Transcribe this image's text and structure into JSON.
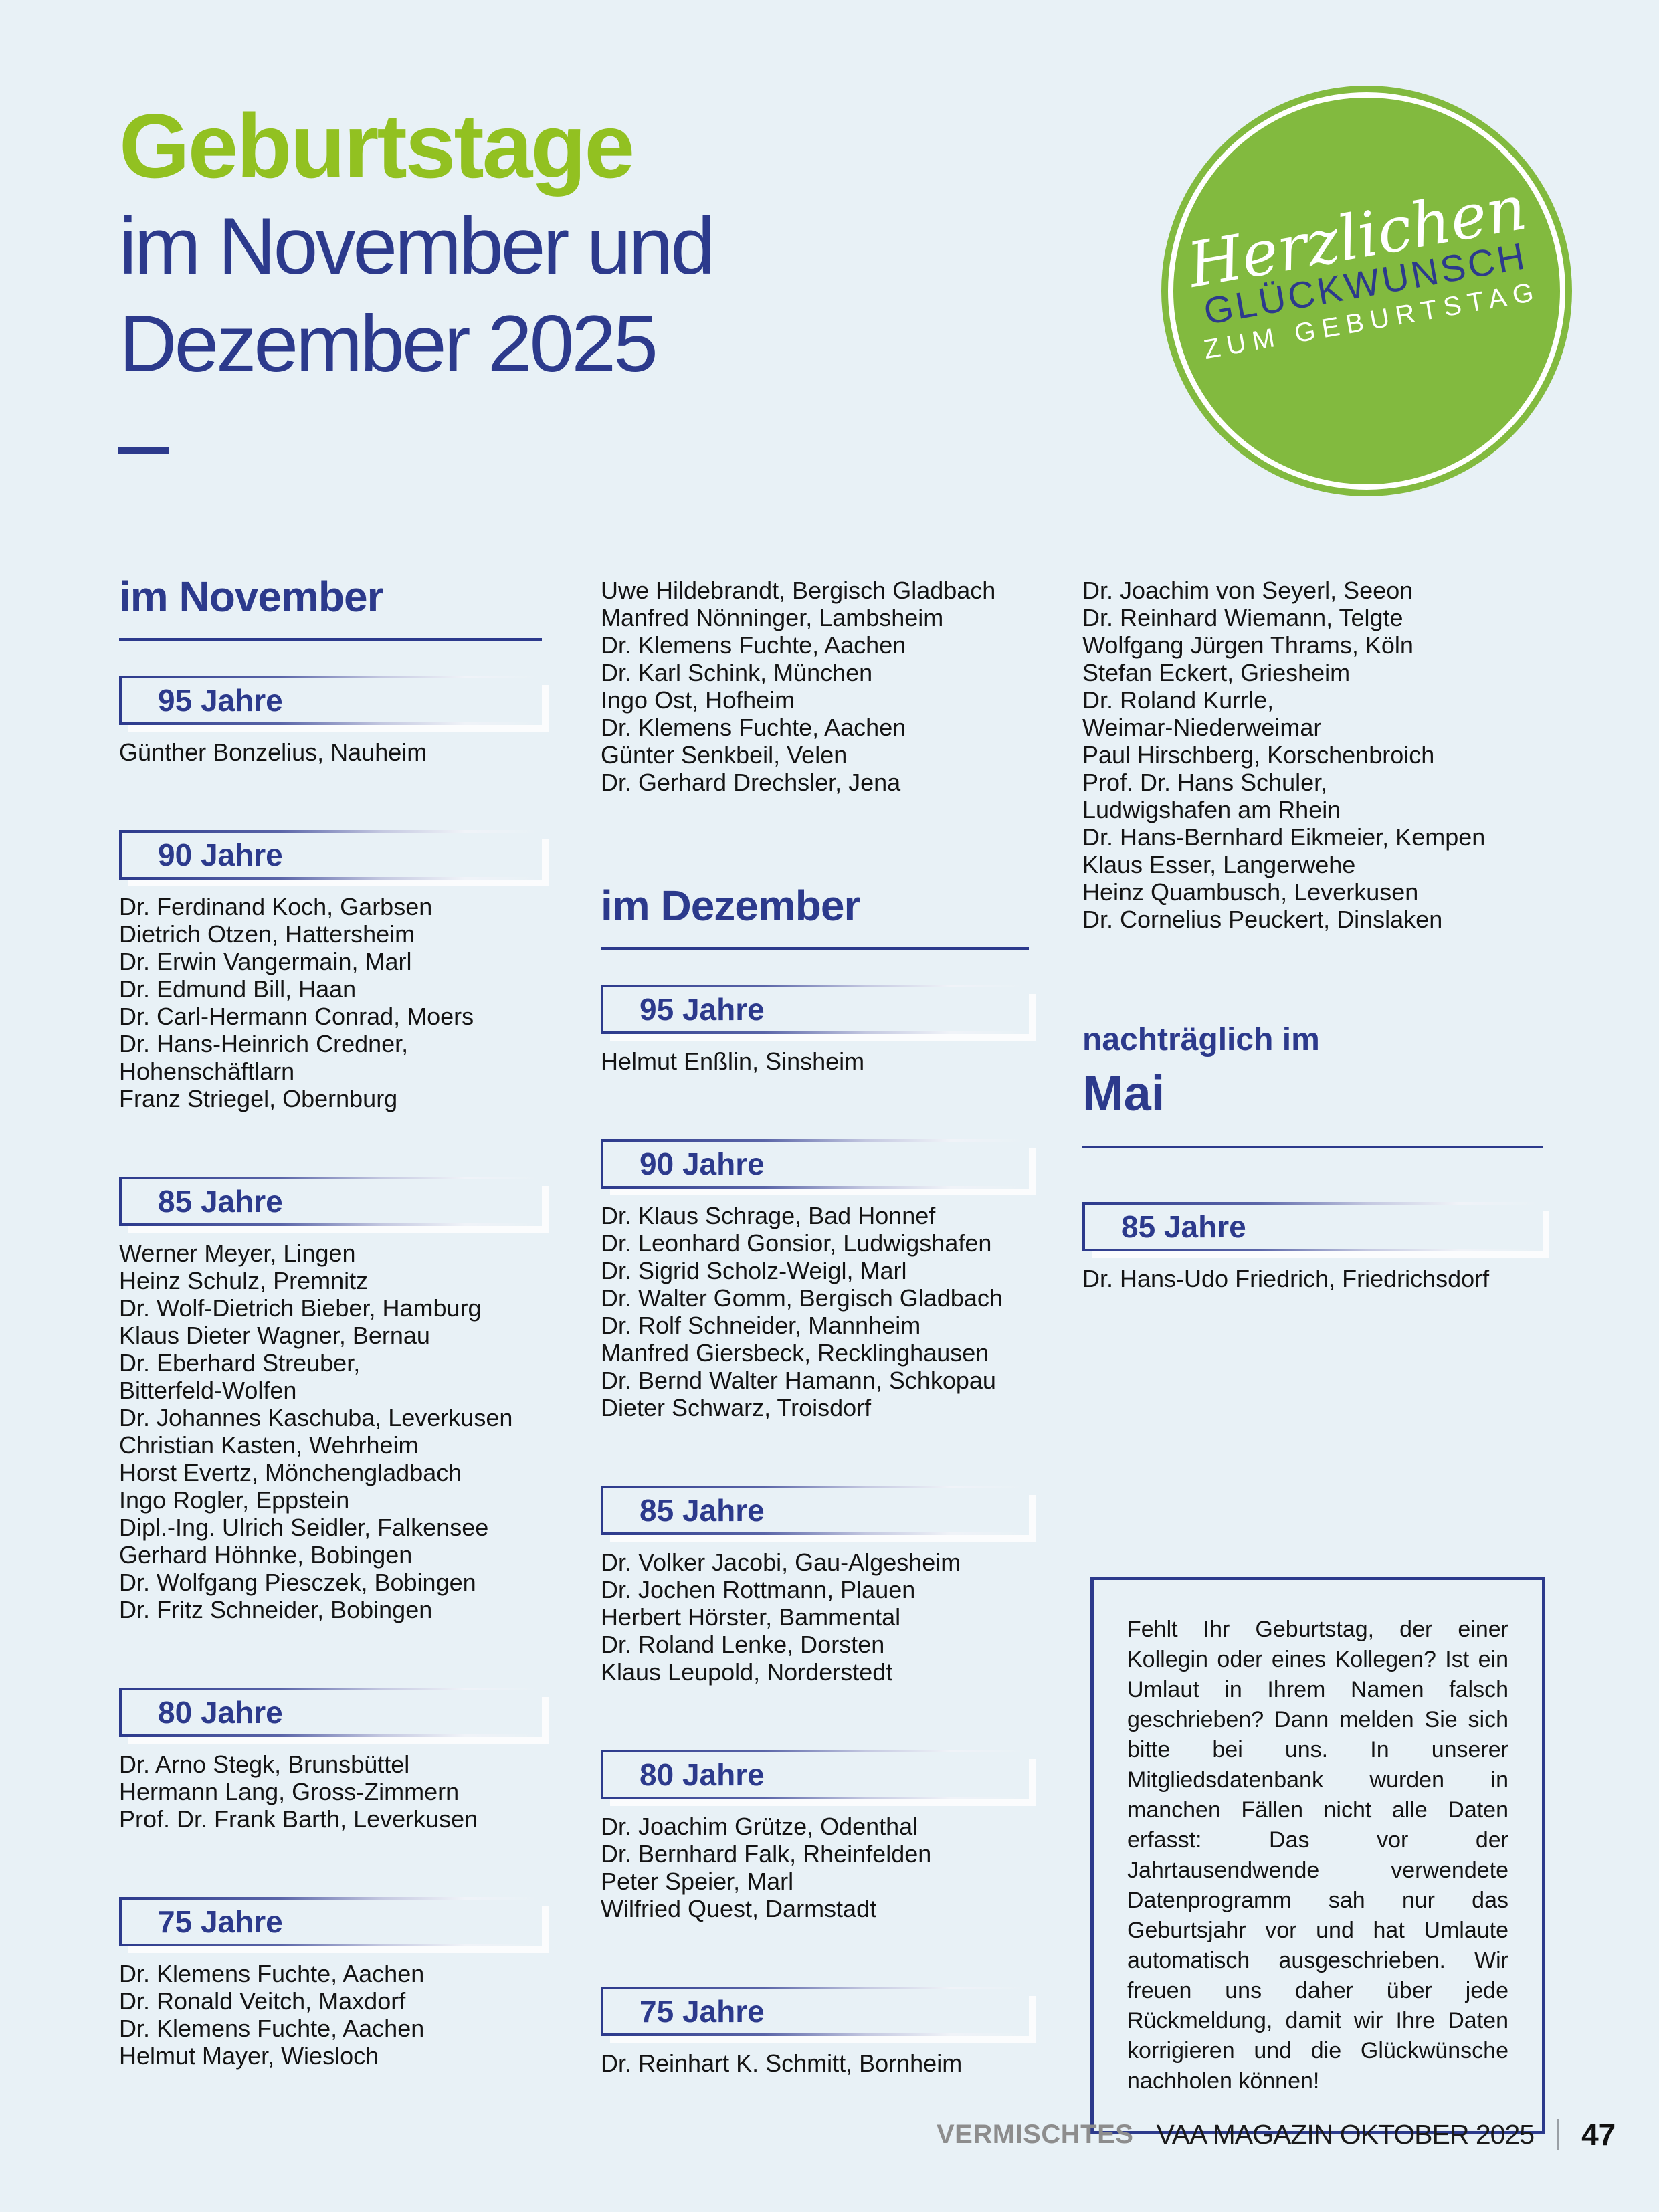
{
  "colors": {
    "background": "#e8f1f6",
    "title_green": "#92c121",
    "stamp_green": "#82ba3f",
    "blue": "#2c3a8c",
    "body_text": "#141414",
    "footer_gray": "#8d8d8d"
  },
  "header": {
    "title": "Geburtstage",
    "subtitle_line1": "im November und",
    "subtitle_line2": "Dezember 2025"
  },
  "stamp": {
    "script": "Herzlichen",
    "caps_blue": "GLÜCKWUNSCH",
    "caps_white": "ZUM GEBURTSTAG"
  },
  "columns": [
    {
      "blocks": [
        {
          "type": "heading",
          "text": "im November"
        },
        {
          "type": "group",
          "first": true,
          "label": "95 Jahre",
          "names": [
            "Günther Bonzelius, Nauheim"
          ]
        },
        {
          "type": "group",
          "label": "90 Jahre",
          "names": [
            "Dr. Ferdinand Koch, Garbsen",
            "Dietrich Otzen, Hattersheim",
            "Dr. Erwin Vangermain, Marl",
            "Dr. Edmund Bill, Haan",
            "Dr. Carl-Hermann Conrad, Moers",
            "Dr. Hans-Heinrich Credner,",
            "Hohenschäftlarn",
            "Franz Striegel, Obernburg"
          ]
        },
        {
          "type": "group",
          "label": "85 Jahre",
          "names": [
            "Werner Meyer, Lingen",
            "Heinz Schulz, Premnitz",
            "Dr. Wolf-Dietrich Bieber, Hamburg",
            "Klaus Dieter Wagner, Bernau",
            "Dr. Eberhard Streuber,",
            "Bitterfeld-Wolfen",
            "Dr. Johannes Kaschuba, Leverkusen",
            "Christian Kasten, Wehrheim",
            "Horst Evertz, Mönchengladbach",
            "Ingo Rogler, Eppstein",
            "Dipl.-Ing. Ulrich Seidler, Falkensee",
            "Gerhard Höhnke, Bobingen",
            "Dr. Wolfgang Piesczek, Bobingen",
            "Dr. Fritz Schneider, Bobingen"
          ]
        },
        {
          "type": "group",
          "label": "80 Jahre",
          "names": [
            "Dr. Arno Stegk, Brunsbüttel",
            "Hermann Lang, Gross-Zimmern",
            "Prof. Dr. Frank Barth, Leverkusen"
          ]
        },
        {
          "type": "group",
          "label": "75 Jahre",
          "names": [
            "Dr. Klemens Fuchte, Aachen",
            "Dr. Ronald Veitch, Maxdorf",
            "Dr. Klemens Fuchte, Aachen",
            "Helmut Mayer, Wiesloch"
          ]
        }
      ]
    },
    {
      "blocks": [
        {
          "type": "names",
          "names": [
            "Uwe Hildebrandt, Bergisch Gladbach",
            "Manfred Nönninger, Lambsheim",
            "Dr. Klemens Fuchte, Aachen",
            "Dr. Karl Schink, München",
            "Ingo Ost, Hofheim",
            "Dr. Klemens Fuchte, Aachen",
            "Günter Senkbeil, Velen",
            "Dr. Gerhard Drechsler, Jena"
          ]
        },
        {
          "type": "heading",
          "spaced": true,
          "text": "im Dezember"
        },
        {
          "type": "group",
          "first": true,
          "label": "95 Jahre",
          "names": [
            "Helmut Enßlin, Sinsheim"
          ]
        },
        {
          "type": "group",
          "label": "90 Jahre",
          "names": [
            "Dr. Klaus Schrage, Bad Honnef",
            "Dr. Leonhard Gonsior, Ludwigshafen",
            "Dr. Sigrid Scholz-Weigl, Marl",
            "Dr. Walter Gomm, Bergisch Gladbach",
            "Dr. Rolf Schneider, Mannheim",
            "Manfred Giersbeck, Recklinghausen",
            "Dr. Bernd Walter Hamann, Schkopau",
            "Dieter Schwarz, Troisdorf"
          ]
        },
        {
          "type": "group",
          "label": "85 Jahre",
          "names": [
            "Dr. Volker Jacobi, Gau-Algesheim",
            "Dr. Jochen Rottmann, Plauen",
            "Herbert Hörster, Bammental",
            "Dr. Roland Lenke, Dorsten",
            "Klaus Leupold, Norderstedt"
          ]
        },
        {
          "type": "group",
          "label": "80 Jahre",
          "names": [
            "Dr. Joachim Grütze, Odenthal",
            "Dr. Bernhard Falk, Rheinfelden",
            "Peter Speier, Marl",
            "Wilfried Quest, Darmstadt"
          ]
        },
        {
          "type": "group",
          "label": "75 Jahre",
          "names": [
            "Dr. Reinhart K. Schmitt, Bornheim"
          ]
        }
      ]
    },
    {
      "blocks": [
        {
          "type": "names",
          "names": [
            "Dr. Joachim von Seyerl, Seeon",
            "Dr. Reinhard Wiemann, Telgte",
            "Wolfgang Jürgen Thrams, Köln",
            "Stefan Eckert, Griesheim",
            "Dr. Roland Kurrle,",
            "Weimar-Niederweimar",
            "Paul Hirschberg, Korschenbroich",
            "Prof. Dr. Hans Schuler,",
            "Ludwigshafen am Rhein",
            "Dr. Hans-Bernhard Eikmeier, Kempen",
            "Klaus Esser, Langerwehe",
            "Heinz Quambusch, Leverkusen",
            "Dr. Cornelius Peuckert, Dinslaken"
          ]
        },
        {
          "type": "heading2",
          "line1": "nachträglich im",
          "line2": "Mai"
        },
        {
          "type": "group",
          "first": true,
          "label": "85 Jahre",
          "names": [
            "Dr. Hans-Udo Friedrich, Friedrichsdorf"
          ]
        },
        {
          "type": "infobox",
          "text": "Fehlt Ihr Geburtstag, der einer Kollegin oder eines Kollegen? Ist ein Umlaut in Ihrem Namen falsch geschrieben? Dann melden Sie sich bitte bei uns. In unserer Mitgliedsdatenbank wurden in manchen Fällen nicht alle Daten erfasst: Das vor der Jahrtausendwende verwendete Datenprogramm sah nur das Geburtsjahr vor und hat Umlaute automatisch ausgeschrieben. Wir freuen uns daher über jede Rückmeldung, damit wir Ihre Daten korrigieren und die Glückwünsche nachholen können!"
        }
      ]
    }
  ],
  "footer": {
    "section": "VERMISCHTES",
    "magazine": "VAA MAGAZIN OKTOBER 2025",
    "page": "47"
  }
}
